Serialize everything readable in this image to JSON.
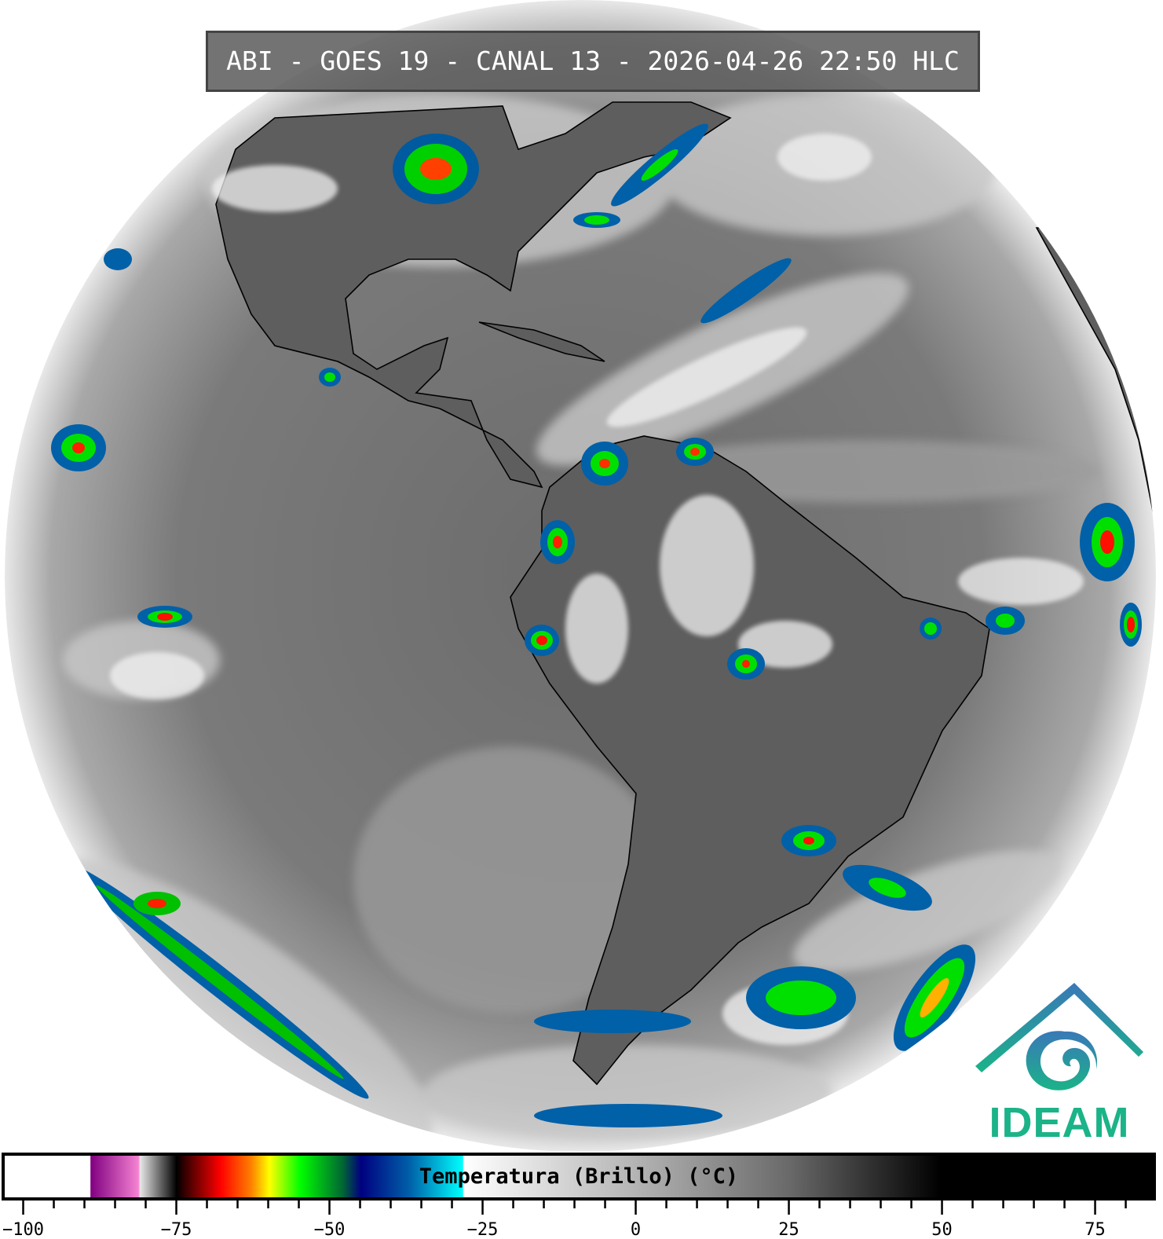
{
  "title": "ABI - GOES 19 - CANAL 13 - 2026-04-26 22:50 HLC",
  "logo": {
    "text": "IDEAM",
    "color": "#1bb388",
    "roof_color": "#3a78b8"
  },
  "colorbar": {
    "label": "Temperatura (Brillo) (°C)",
    "min": -103.4,
    "max": 84.8,
    "tick_step": 5,
    "label_step": 25,
    "tick_start": -100,
    "tick_end": 80,
    "stops": [
      {
        "t": -103.4,
        "color": "#ffffff"
      },
      {
        "t": -89.4,
        "color": "#ffffff"
      },
      {
        "t": -89.3,
        "color": "#800080"
      },
      {
        "t": -81.5,
        "color": "#f582d2"
      },
      {
        "t": -81.2,
        "color": "#e6e6e6"
      },
      {
        "t": -75.2,
        "color": "#000000"
      },
      {
        "t": -74,
        "color": "#300000"
      },
      {
        "t": -68,
        "color": "#ff0000"
      },
      {
        "t": -63,
        "color": "#ff8000"
      },
      {
        "t": -60,
        "color": "#ffff00"
      },
      {
        "t": -55,
        "color": "#00ff00"
      },
      {
        "t": -48,
        "color": "#006633"
      },
      {
        "t": -45,
        "color": "#000080"
      },
      {
        "t": -37,
        "color": "#0060a8"
      },
      {
        "t": -28.3,
        "color": "#00ffff"
      },
      {
        "t": -28.2,
        "color": "#ffffff"
      },
      {
        "t": 0,
        "color": "#b4b4b4"
      },
      {
        "t": 25,
        "color": "#6a6a6a"
      },
      {
        "t": 50,
        "color": "#000000"
      },
      {
        "t": 84.8,
        "color": "#000000"
      }
    ]
  }
}
